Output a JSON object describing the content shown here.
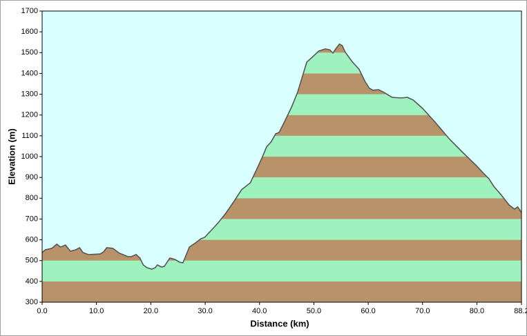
{
  "chart_data": {
    "type": "area",
    "x_label": "Distance  (km)",
    "y_label": "Elevation (m)",
    "x": [
      0,
      0.6,
      1.8,
      2.7,
      3.4,
      4.3,
      5.2,
      6.2,
      6.9,
      7.5,
      8.5,
      10.7,
      11.3,
      11.9,
      13.0,
      14.2,
      15.8,
      16.4,
      17.3,
      18.0,
      18.6,
      19.3,
      20.2,
      20.8,
      21.2,
      22.0,
      22.5,
      23.5,
      24.4,
      25.3,
      25.9,
      27.1,
      28.2,
      29.2,
      29.9,
      31.1,
      32.4,
      33.8,
      35.2,
      36.7,
      38.3,
      39.5,
      40.5,
      41.3,
      42.1,
      43.0,
      43.6,
      44.7,
      45.9,
      47.0,
      47.8,
      48.7,
      49.7,
      50.9,
      52.1,
      52.9,
      53.5,
      54.1,
      54.7,
      55.2,
      55.8,
      57.1,
      58.3,
      59.4,
      60.2,
      60.9,
      61.9,
      62.9,
      64.4,
      66.0,
      67.2,
      68.3,
      70.0,
      72.3,
      74.9,
      77.4,
      79.9,
      81.2,
      82.2,
      83.1,
      84.4,
      85.9,
      86.9,
      87.5,
      88.2
    ],
    "values": [
      539,
      552,
      559,
      579,
      565,
      575,
      545,
      552,
      562,
      539,
      529,
      532,
      542,
      562,
      559,
      536,
      519,
      519,
      529,
      512,
      479,
      466,
      459,
      466,
      479,
      469,
      473,
      512,
      506,
      492,
      489,
      565,
      585,
      605,
      612,
      645,
      682,
      728,
      781,
      841,
      874,
      940,
      997,
      1047,
      1070,
      1110,
      1116,
      1173,
      1239,
      1309,
      1378,
      1455,
      1478,
      1508,
      1518,
      1514,
      1498,
      1521,
      1541,
      1534,
      1501,
      1455,
      1421,
      1362,
      1329,
      1319,
      1322,
      1309,
      1285,
      1282,
      1285,
      1272,
      1232,
      1166,
      1086,
      1020,
      957,
      920,
      894,
      857,
      818,
      768,
      748,
      758,
      731
    ],
    "line_color": "#555555",
    "fill_colors": [
      "#b8936a",
      "#9ef2bd"
    ],
    "background": "#d9ffff",
    "xlim": [
      0,
      88.2
    ],
    "ylim": [
      300,
      1700
    ],
    "xticks": [
      {
        "value": 0,
        "label": "0.0"
      },
      {
        "value": 10,
        "label": "10.0"
      },
      {
        "value": 20,
        "label": "20.0"
      },
      {
        "value": 30,
        "label": "30.0"
      },
      {
        "value": 40,
        "label": "40.0"
      },
      {
        "value": 50,
        "label": "50.0"
      },
      {
        "value": 60,
        "label": "60.0"
      },
      {
        "value": 70,
        "label": "70.0"
      },
      {
        "value": 80,
        "label": "80.0"
      },
      88.2
    ],
    "yticks": [
      300,
      400,
      500,
      600,
      700,
      800,
      900,
      1000,
      1100,
      1200,
      1300,
      1400,
      1500,
      1600,
      1700
    ]
  }
}
